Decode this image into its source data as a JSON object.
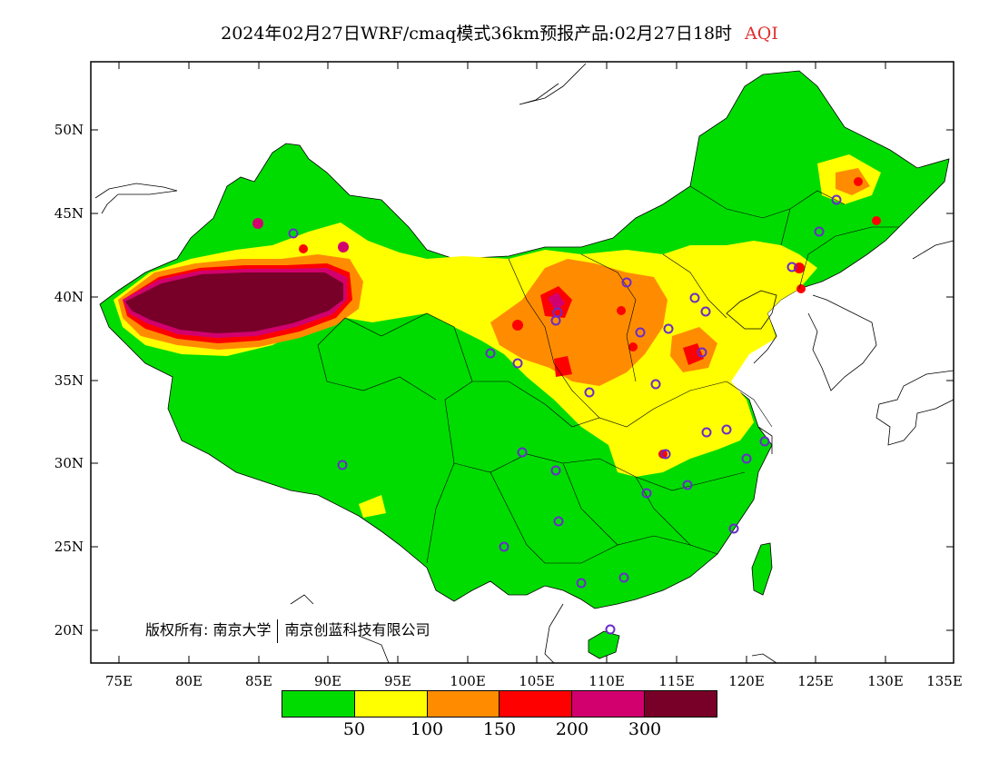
{
  "title": {
    "main": "2024年02月27日WRF/cmaq模式36km预报产品:02月27日18时",
    "variable": "AQI",
    "variable_color": "#e03030"
  },
  "axes": {
    "lat_labels": [
      "50N",
      "45N",
      "40N",
      "35N",
      "30N",
      "25N",
      "20N"
    ],
    "lon_labels": [
      "75E",
      "80E",
      "85E",
      "90E",
      "95E",
      "100E",
      "105E",
      "110E",
      "115E",
      "120E",
      "125E",
      "130E",
      "135E"
    ]
  },
  "copyright": {
    "part1": "版权所有: 南京大学",
    "part2": "南京创蓝科技有限公司"
  },
  "legend": {
    "colors": [
      "#00dc00",
      "#ffff00",
      "#ff8c00",
      "#ff0000",
      "#d2006e",
      "#780028"
    ],
    "labels": [
      "50",
      "100",
      "150",
      "200",
      "300"
    ]
  },
  "palette": {
    "good": "#00dc00",
    "moderate": "#ffff00",
    "usg": "#ff8c00",
    "unhealthy": "#ff0000",
    "very_unhealthy": "#d2006e",
    "hazardous": "#780028",
    "station_marker": "#6a2cc8"
  }
}
